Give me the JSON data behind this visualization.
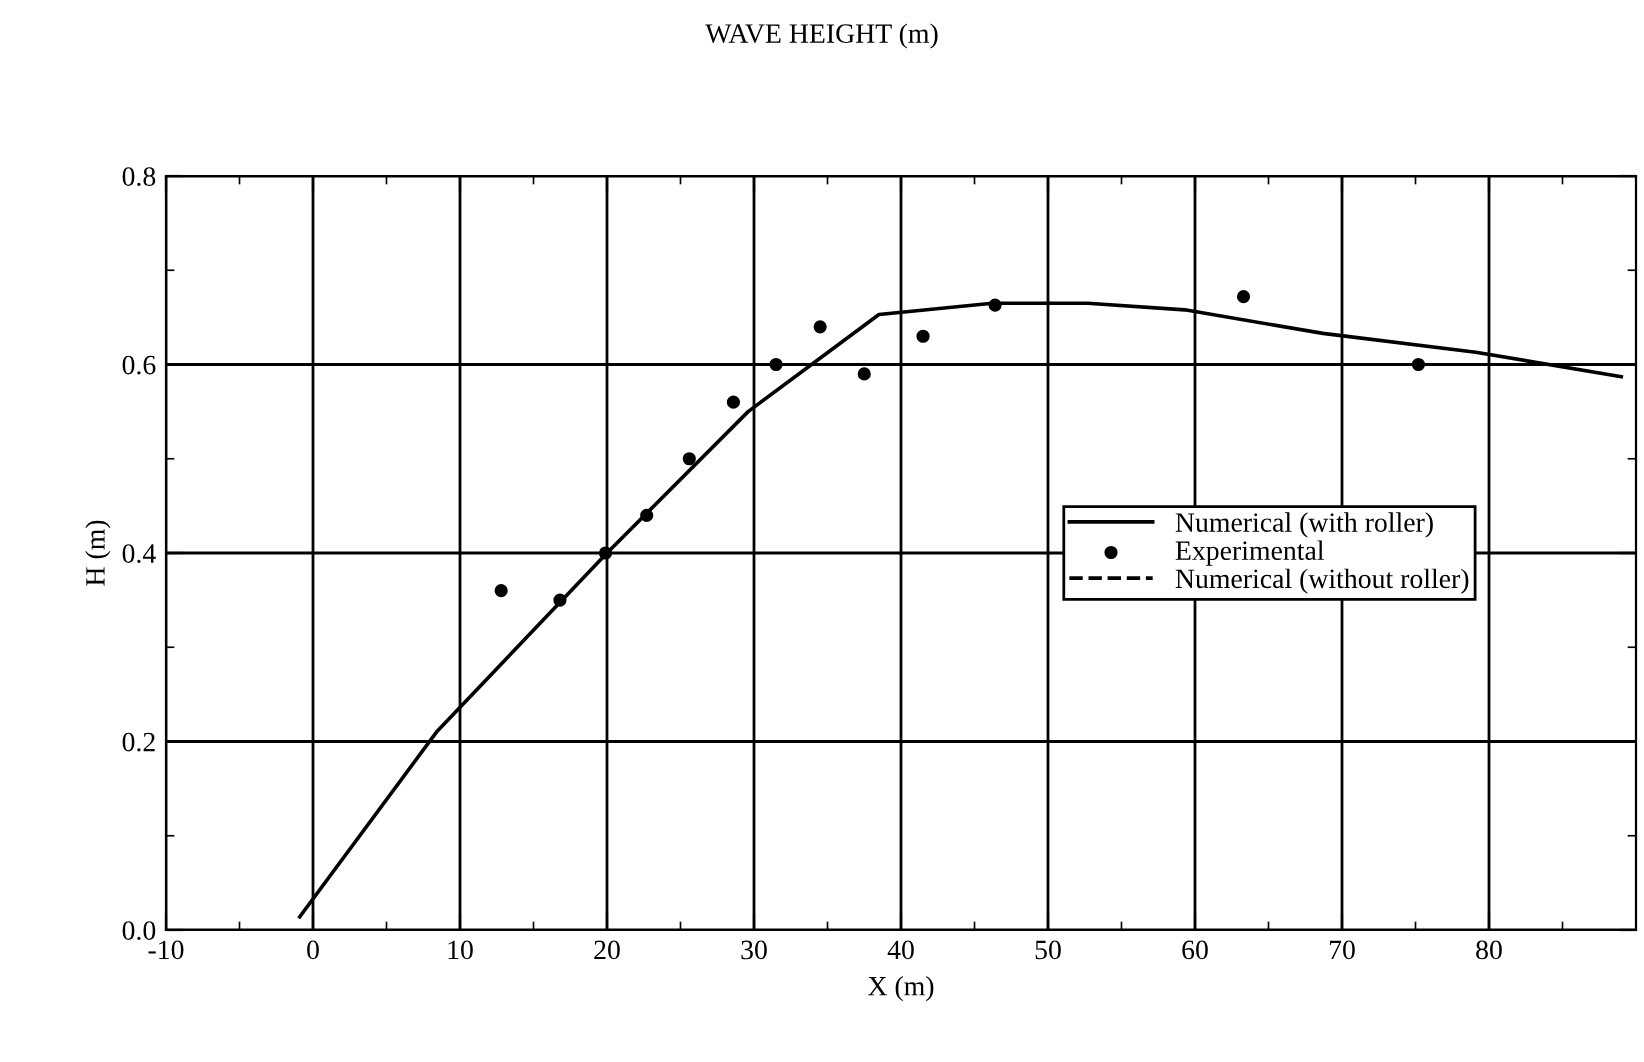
{
  "chart_data": {
    "type": "line",
    "title": "WAVE HEIGHT (m)",
    "xlabel": "X (m)",
    "ylabel": "H (m)",
    "xlim": [
      -10,
      90
    ],
    "xticks": [
      -10,
      0,
      10,
      20,
      30,
      40,
      50,
      60,
      70,
      80
    ],
    "ylim": [
      0,
      0.8
    ],
    "yticks": [
      {
        "value": 0,
        "label": "0.0"
      },
      0.2,
      0.4,
      0.6,
      0.8
    ],
    "grid": true,
    "legend": "right",
    "series": [
      {
        "name": "Numerical (with roller)",
        "color": "#000000",
        "line_style": "solid",
        "marker": "none",
        "x": [
          -0.9,
          8.4,
          20,
          29.6,
          38.5,
          46.2,
          52.7,
          59.3,
          68.7,
          79.1,
          89
        ],
        "values": [
          0.014,
          0.21,
          0.4,
          0.55,
          0.653,
          0.665,
          0.665,
          0.658,
          0.633,
          0.613,
          0.587
        ]
      },
      {
        "name": "Experimental",
        "type": "scatter",
        "color": "#000000",
        "marker": "circle",
        "x": [
          12.8,
          16.8,
          19.9,
          22.7,
          25.6,
          28.6,
          31.5,
          34.5,
          37.5,
          41.5,
          46.4,
          63.3,
          75.2
        ],
        "values": [
          0.36,
          0.35,
          0.4,
          0.44,
          0.5,
          0.56,
          0.6,
          0.64,
          0.59,
          0.63,
          0.663,
          0.672,
          0.6
        ]
      },
      {
        "name": "Numerical (without roller)",
        "color": "#000000",
        "line_style": "dashed",
        "marker": "none"
      }
    ]
  }
}
